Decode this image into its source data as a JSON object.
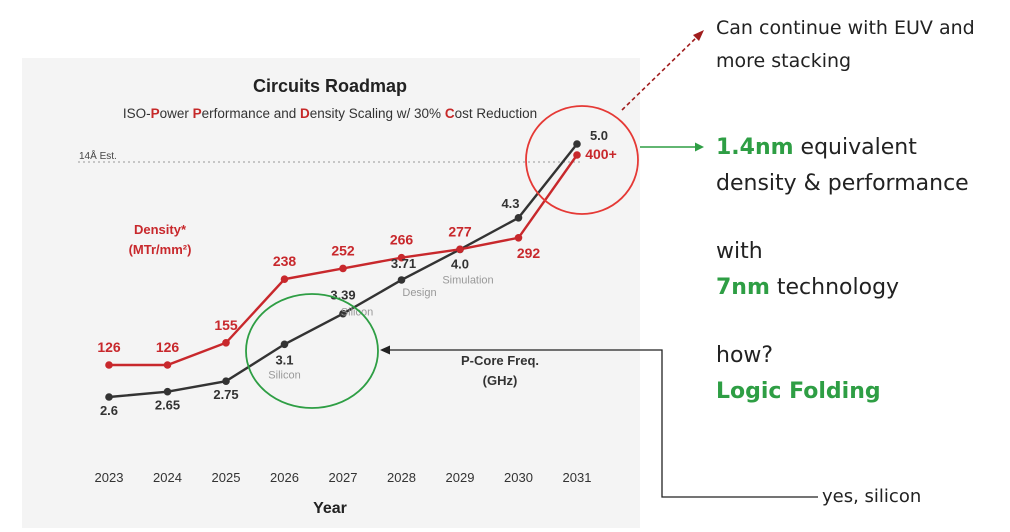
{
  "chart_data": {
    "type": "line",
    "title": "Circuits Roadmap",
    "subtitle_parts": [
      {
        "text": "ISO-",
        "hl": false
      },
      {
        "text": "P",
        "hl": true
      },
      {
        "text": "ower ",
        "hl": false
      },
      {
        "text": "P",
        "hl": true
      },
      {
        "text": "erformance and ",
        "hl": false
      },
      {
        "text": "D",
        "hl": true
      },
      {
        "text": "ensity Scaling w/ 30% ",
        "hl": false
      },
      {
        "text": "C",
        "hl": true
      },
      {
        "text": "ost Reduction",
        "hl": false
      }
    ],
    "xlabel": "Year",
    "categories": [
      "2023",
      "2024",
      "2025",
      "2026",
      "2027",
      "2028",
      "2029",
      "2030",
      "2031"
    ],
    "reference_line_label": "14Å Est.",
    "series": [
      {
        "name_line1": "Density*",
        "name_line2": "(MTr/mm²)",
        "color": "#c8282c",
        "values": [
          126,
          126,
          155,
          238,
          252,
          266,
          277,
          292,
          400
        ],
        "labels": [
          "126",
          "126",
          "155",
          "238",
          "252",
          "266",
          "277",
          "292",
          "400+"
        ]
      },
      {
        "name_line1": "P-Core Freq.",
        "name_line2": "(GHz)",
        "color": "#333333",
        "values": [
          2.6,
          2.65,
          2.75,
          3.1,
          3.39,
          3.71,
          4.0,
          4.3,
          5.0
        ],
        "labels": [
          "2.6",
          "2.65",
          "2.75",
          "3.1",
          "3.39",
          "3.71",
          "4.0",
          "4.3",
          "5.0"
        ],
        "phase_labels": [
          "",
          "",
          "",
          "Silicon",
          "Silicon",
          "Design",
          "Simulation",
          "",
          ""
        ]
      }
    ],
    "colors": {
      "density": "#c8282c",
      "frequency": "#333333",
      "highlight_circle_red": "#e53935",
      "highlight_circle_green": "#2e9e44"
    }
  },
  "annotations": {
    "euv_line1": "Can continue with EUV and",
    "euv_line2": "more stacking",
    "equiv_hl": "1.4nm",
    "equiv_rest": " equivalent",
    "equiv_line2": "density & performance",
    "with": "with",
    "tech_hl": "7nm",
    "tech_rest": " technology",
    "how": "how?",
    "logic_folding": "Logic Folding",
    "silicon_note": "yes, silicon"
  }
}
